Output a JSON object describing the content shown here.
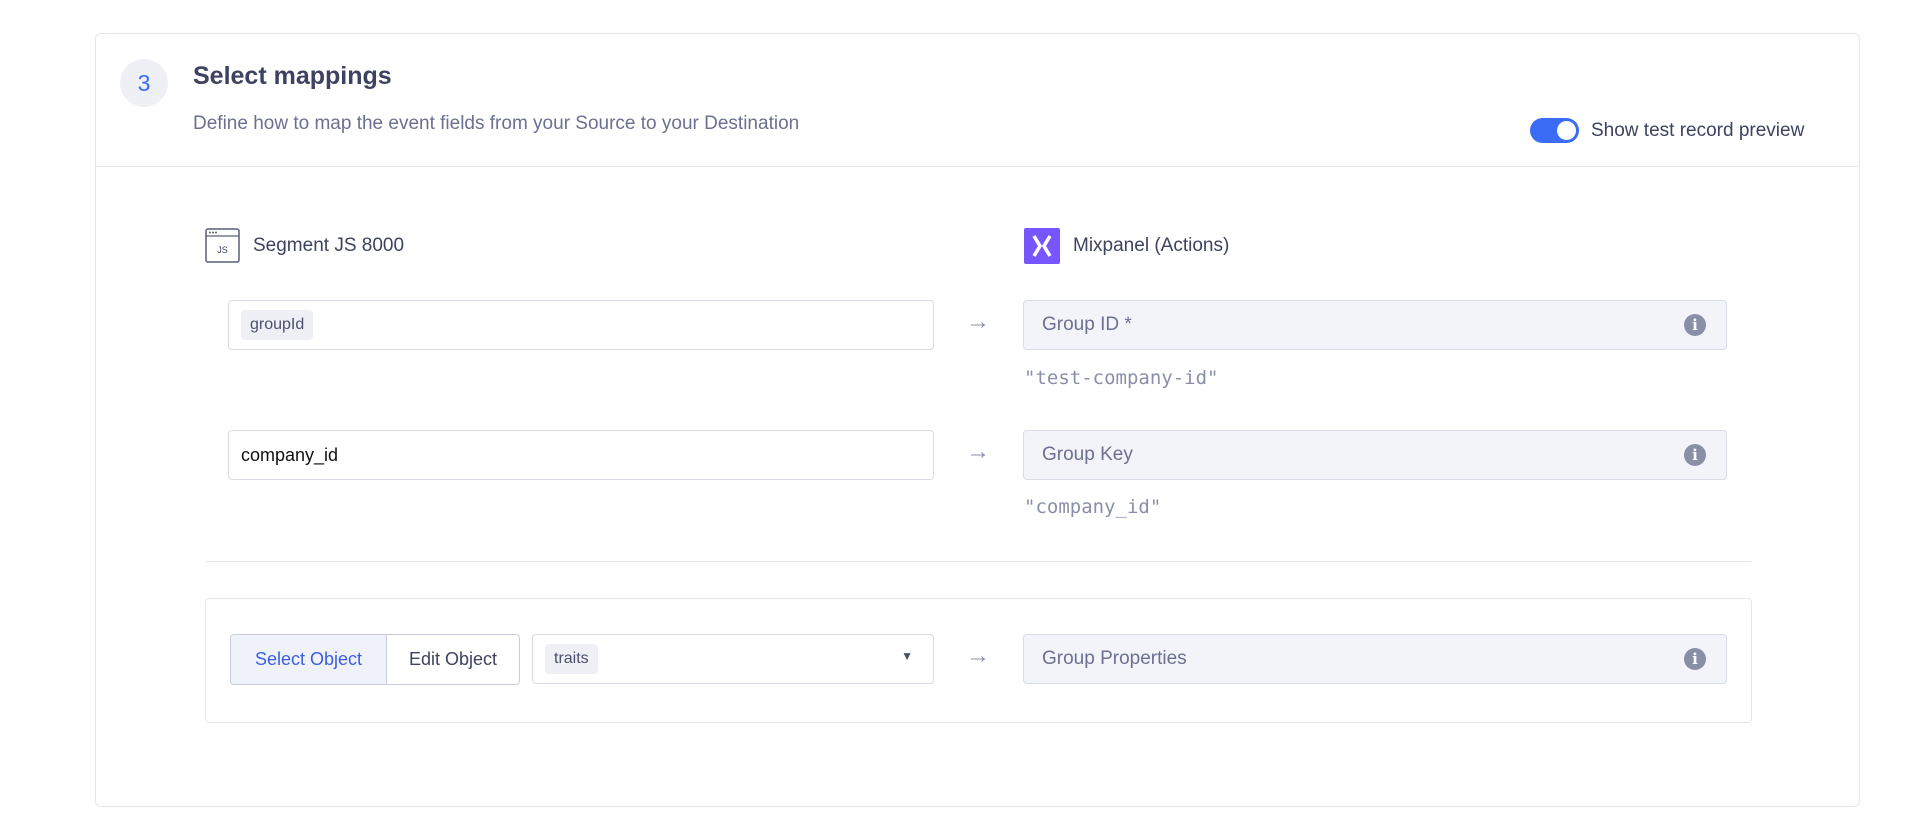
{
  "step": {
    "number": "3",
    "title": "Select mappings",
    "subtitle": "Define how to map the event fields from your Source to your Destination"
  },
  "toggle": {
    "label": "Show test record preview",
    "on": true,
    "color": "#3b6cf6"
  },
  "source": {
    "name": "Segment JS 8000",
    "icon": "js-window-icon",
    "icon_text": "JS"
  },
  "destination": {
    "name": "Mixpanel (Actions)",
    "icon": "mixpanel-logo",
    "brand_color": "#7856ff"
  },
  "mappings": [
    {
      "source_value": "groupId",
      "source_is_pill": true,
      "target": "Group ID *",
      "preview": "\"test-company-id\""
    },
    {
      "source_value": "company_id",
      "source_is_pill": false,
      "target": "Group Key",
      "preview": "\"company_id\""
    }
  ],
  "object_mapping": {
    "modes": [
      "Select Object",
      "Edit Object"
    ],
    "active_mode": "Select Object",
    "selected": "traits",
    "target": "Group Properties"
  },
  "arrow_glyph": "→",
  "info_glyph": "i"
}
